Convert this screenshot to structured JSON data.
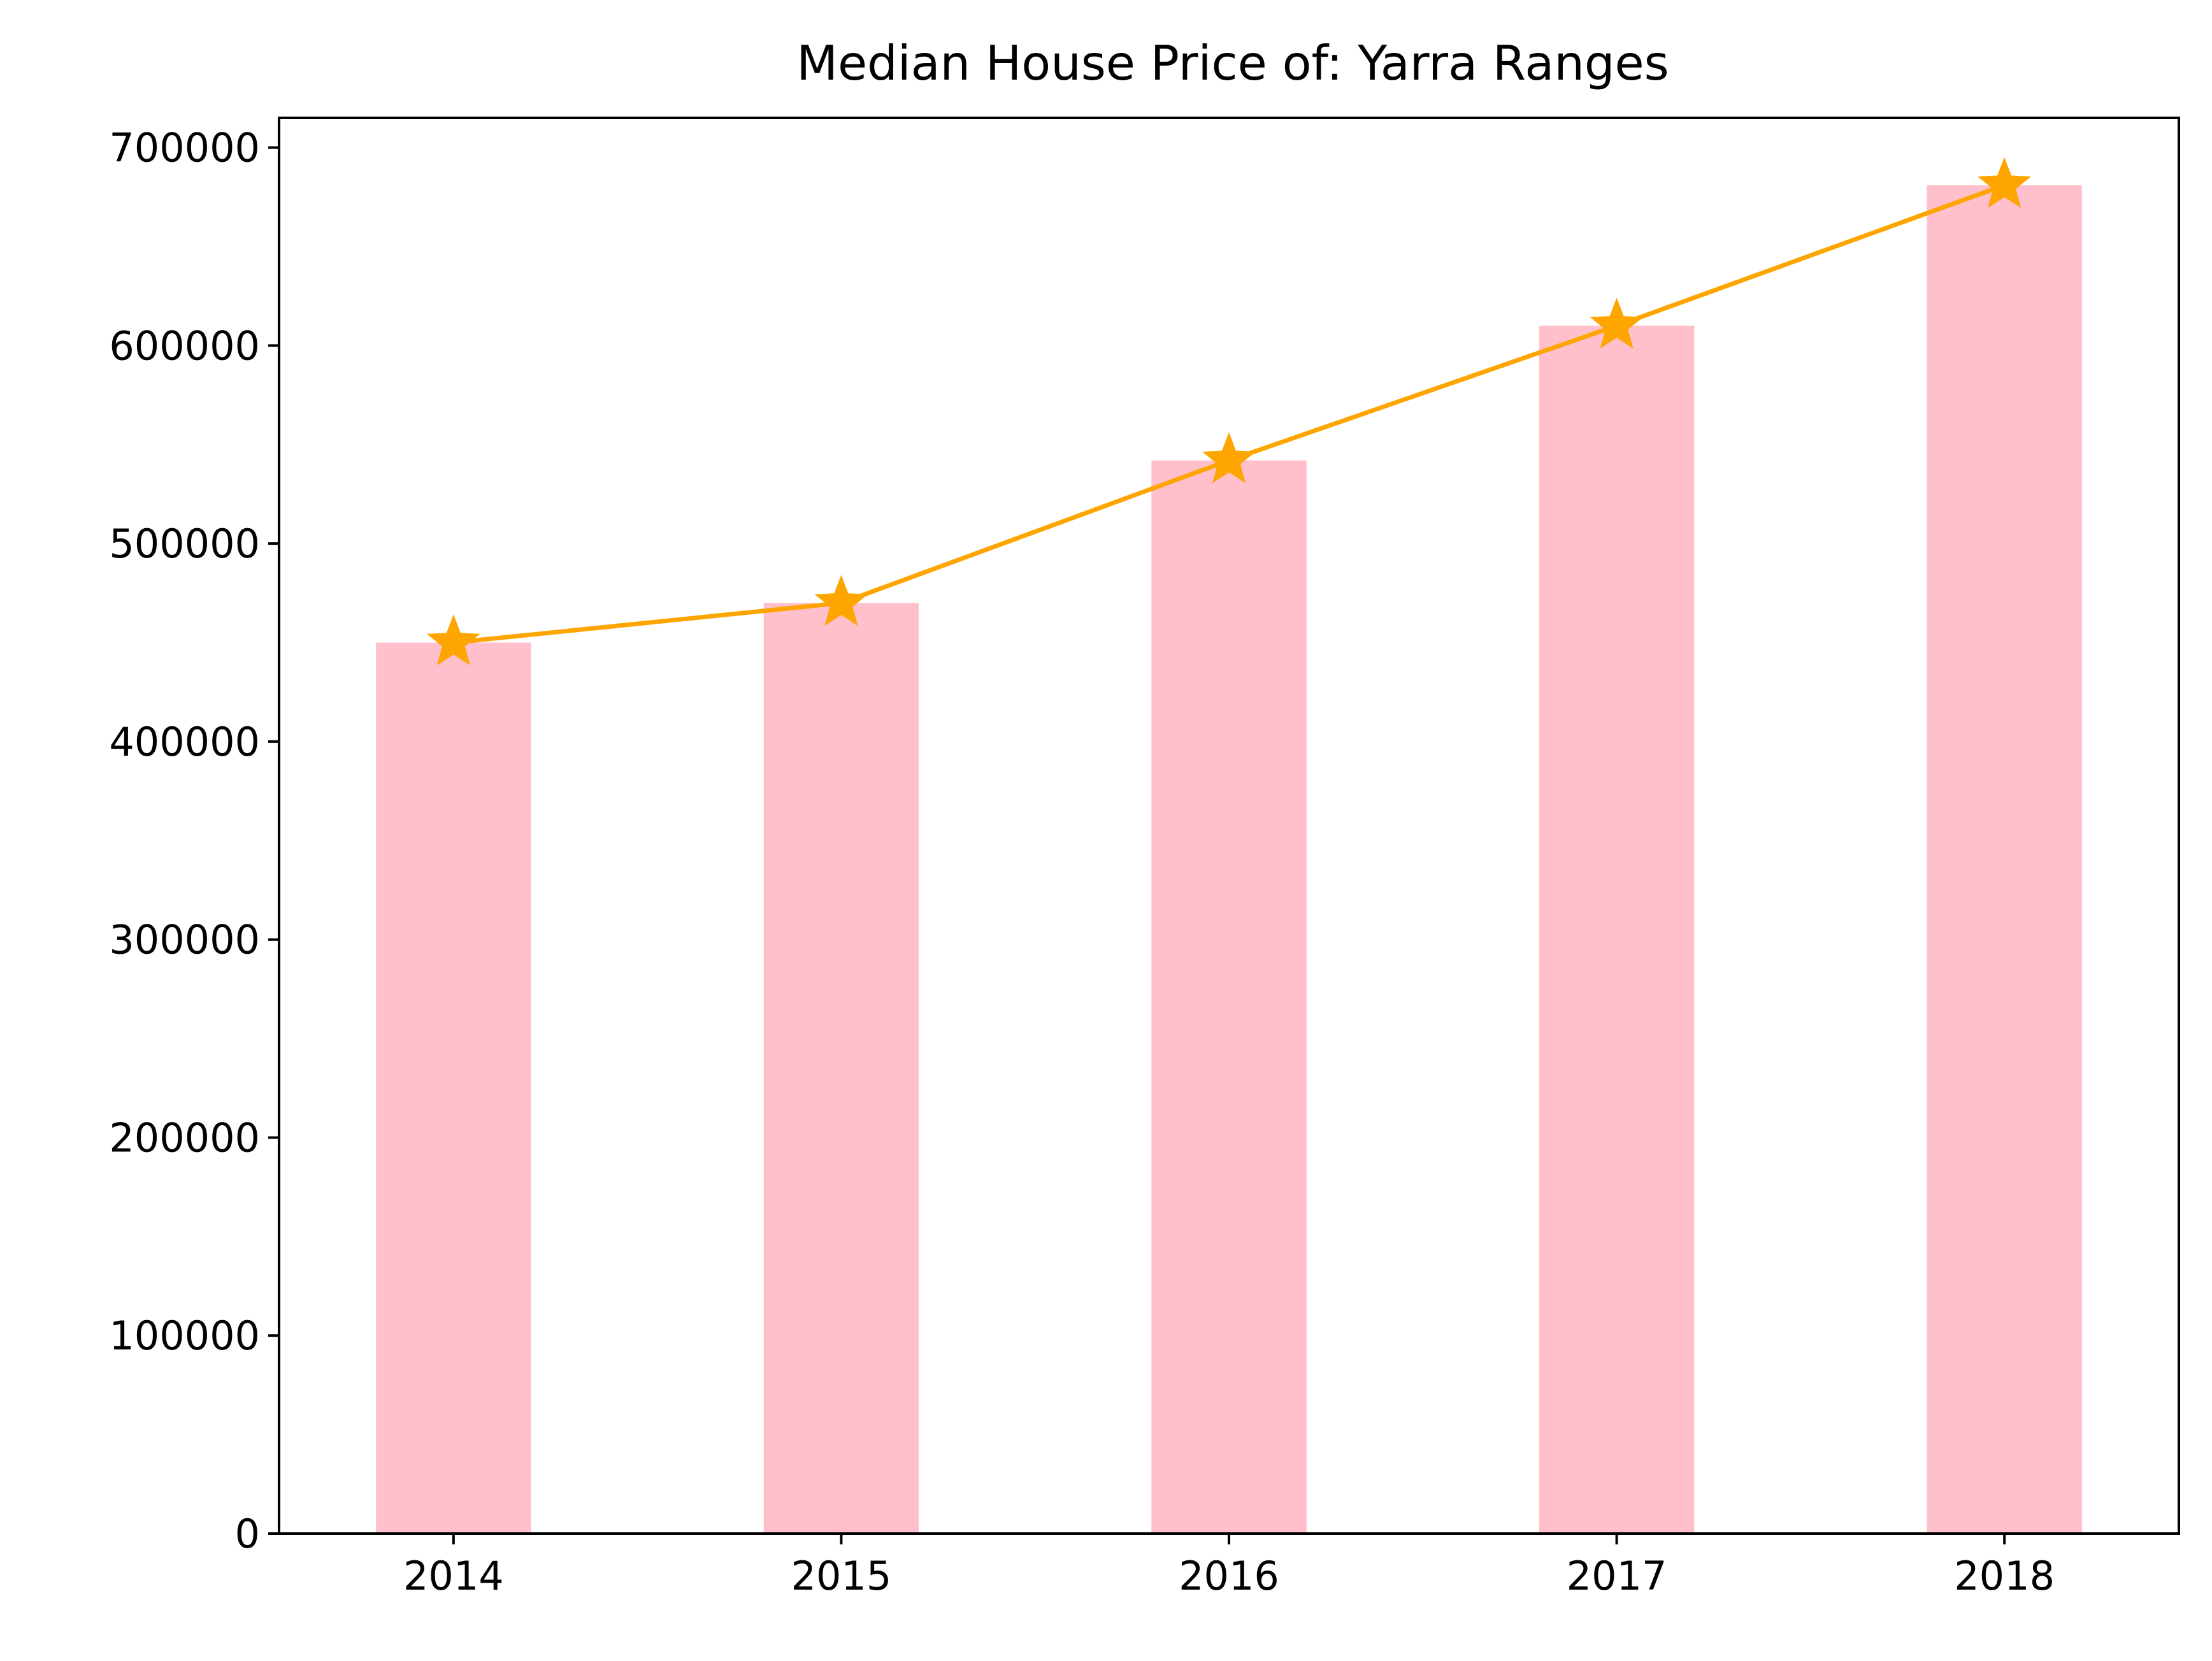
{
  "chart_data": {
    "type": "bar",
    "title": "Median House Price of: Yarra Ranges",
    "xlabel": "",
    "ylabel": "",
    "categories": [
      "2014",
      "2015",
      "2016",
      "2017",
      "2018"
    ],
    "series": [
      {
        "type": "bar",
        "values": [
          450000,
          470000,
          542000,
          610000,
          681000
        ],
        "color": "#ffc0cb"
      },
      {
        "type": "line",
        "marker": "star",
        "values": [
          450000,
          470000,
          542000,
          610000,
          681000
        ],
        "color": "#ffa500"
      }
    ],
    "ylim": [
      0,
      715000
    ],
    "yticks": [
      0,
      100000,
      200000,
      300000,
      400000,
      500000,
      600000,
      700000
    ],
    "ytick_labels": [
      "0",
      "100000",
      "200000",
      "300000",
      "400000",
      "500000",
      "600000",
      "700000"
    ],
    "grid": false,
    "legend": "none"
  }
}
